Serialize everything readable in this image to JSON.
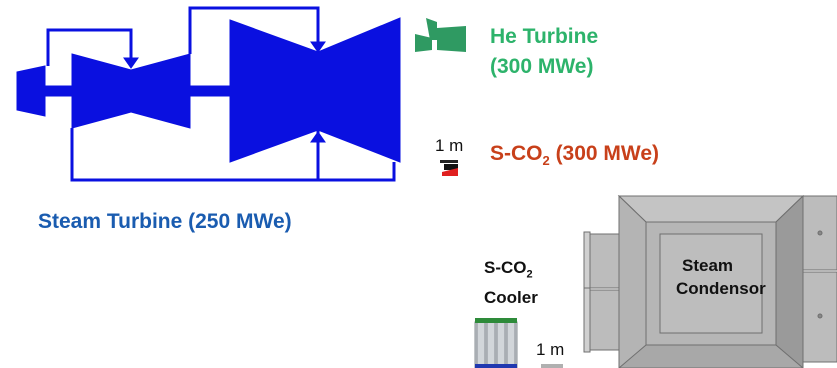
{
  "labels": {
    "he_turbine_line1": "He Turbine",
    "he_turbine_line2": "(300 MWe)",
    "sco2_prefix": "S-CO",
    "sco2_sub": "2",
    "sco2_suffix": " (300 MWe)",
    "steam_turbine": "Steam Turbine (250 MWe)",
    "cooler_prefix": "S-CO",
    "cooler_sub": "2",
    "cooler_line2": "Cooler",
    "condensor_line1": "Steam",
    "condensor_line2": "Condensor",
    "scale_top": "1 m",
    "scale_bottom": "1 m"
  },
  "colors": {
    "steam_turbine": "#0a10e0",
    "he_turbine": "#2f9a62",
    "sco2_turbine": "#e02020",
    "condenser": "#9a9a9a",
    "label_blue": "#1a5cb0",
    "label_green": "#2db36b",
    "label_red": "#c8401a"
  }
}
